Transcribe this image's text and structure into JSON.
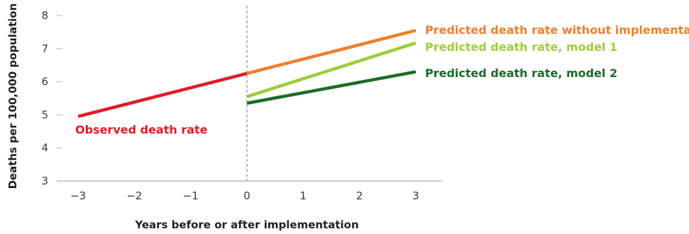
{
  "chart_data": {
    "type": "line",
    "title": "",
    "xlabel": "Years before or after implementation",
    "ylabel": "Deaths per 100,000 population",
    "xlim": [
      -3.3,
      3.5
    ],
    "ylim": [
      3,
      8.3
    ],
    "x_ticks": [
      -3,
      -2,
      -1,
      0,
      1,
      2,
      3
    ],
    "x_tick_labels": [
      "−3",
      "−2",
      "−1",
      "0",
      "1",
      "2",
      "3"
    ],
    "y_ticks": [
      3,
      4,
      5,
      6,
      7,
      8
    ],
    "y_tick_labels": [
      "3",
      "4",
      "5",
      "6",
      "7",
      "8"
    ],
    "grid": false,
    "reference_line_x": 0,
    "series": [
      {
        "name": "Observed death rate",
        "color": "#e31b23",
        "x": [
          -3,
          0
        ],
        "y": [
          4.95,
          6.25
        ]
      },
      {
        "name": "Predicted death rate without implementation",
        "color": "#f07f2e",
        "x": [
          0,
          3
        ],
        "y": [
          6.25,
          7.55
        ]
      },
      {
        "name": "Predicted death rate, model 1",
        "color": "#9fcc3b",
        "x": [
          0,
          3
        ],
        "y": [
          5.55,
          7.17
        ]
      },
      {
        "name": "Predicted death rate, model 2",
        "color": "#1a6b2a",
        "x": [
          0,
          3
        ],
        "y": [
          5.35,
          6.3
        ]
      }
    ]
  }
}
